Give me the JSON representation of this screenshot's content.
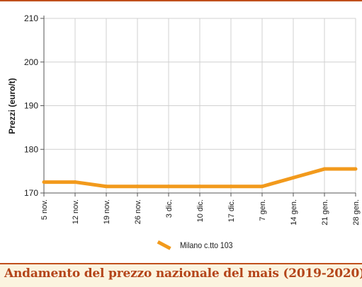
{
  "chart_data": {
    "type": "line",
    "title": "Andamento del prezzo nazionale del mais (2019-2020)",
    "ylabel": "Prezzi (euro/t)",
    "xlabel": "",
    "categories": [
      "5 nov.",
      "12 nov.",
      "19 nov.",
      "26 nov.",
      "3 dic.",
      "10 dic.",
      "17 dic.",
      "7 gen.",
      "14 gen.",
      "21 gen.",
      "28 gen."
    ],
    "yticks": [
      170,
      180,
      190,
      200,
      210
    ],
    "ylim": [
      170,
      210
    ],
    "grid": true,
    "legend_position": "bottom-center",
    "series": [
      {
        "name": "Milano  c.tto 103",
        "color": "#f29a1c",
        "values": [
          172.5,
          172.5,
          171.5,
          171.5,
          171.5,
          171.5,
          171.5,
          171.5,
          173.5,
          175.5,
          175.5
        ]
      }
    ]
  },
  "colors": {
    "accent": "#c0501c",
    "title": "#b4451a",
    "footer_bg": "#fbf4df",
    "grid": "#d0d0d0",
    "axis": "#555555"
  }
}
